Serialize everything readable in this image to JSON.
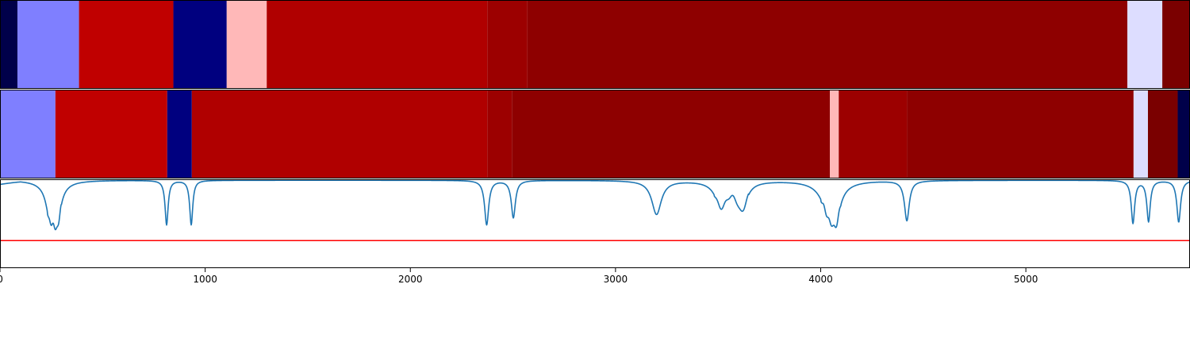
{
  "chart_data": {
    "type": "heatmap",
    "title": "",
    "xlabel": "",
    "ylabel": "",
    "xlim": [
      0,
      5800
    ],
    "x_ticks": [
      0,
      1000,
      2000,
      3000,
      4000,
      5000
    ],
    "x_tick_labels": [
      "0",
      "1000",
      "2000",
      "3000",
      "4000",
      "5000"
    ],
    "colormap": "seismic",
    "rows": [
      {
        "segments": [
          {
            "start": 0,
            "end": 85,
            "color": "#00004a"
          },
          {
            "start": 85,
            "end": 385,
            "color": "#7f7fff"
          },
          {
            "start": 385,
            "end": 845,
            "color": "#c00000"
          },
          {
            "start": 845,
            "end": 1105,
            "color": "#00007f"
          },
          {
            "start": 1105,
            "end": 1300,
            "color": "#ffb8b8"
          },
          {
            "start": 1300,
            "end": 2375,
            "color": "#b00000"
          },
          {
            "start": 2375,
            "end": 2570,
            "color": "#9c0000"
          },
          {
            "start": 2570,
            "end": 5495,
            "color": "#8e0000"
          },
          {
            "start": 5495,
            "end": 5665,
            "color": "#ddddff"
          },
          {
            "start": 5665,
            "end": 5800,
            "color": "#7a0000"
          }
        ]
      },
      {
        "segments": [
          {
            "start": 0,
            "end": 270,
            "color": "#7f7fff"
          },
          {
            "start": 270,
            "end": 815,
            "color": "#c00000"
          },
          {
            "start": 815,
            "end": 935,
            "color": "#00007f"
          },
          {
            "start": 935,
            "end": 2375,
            "color": "#b00000"
          },
          {
            "start": 2375,
            "end": 2495,
            "color": "#9c0000"
          },
          {
            "start": 2495,
            "end": 4045,
            "color": "#8e0000"
          },
          {
            "start": 4045,
            "end": 4088,
            "color": "#ffb8b8"
          },
          {
            "start": 4088,
            "end": 4420,
            "color": "#9c0000"
          },
          {
            "start": 4420,
            "end": 5525,
            "color": "#8e0000"
          },
          {
            "start": 5525,
            "end": 5595,
            "color": "#ddddff"
          },
          {
            "start": 5595,
            "end": 5740,
            "color": "#7a0000"
          },
          {
            "start": 5740,
            "end": 5800,
            "color": "#00004a"
          }
        ]
      }
    ],
    "spectrum": {
      "color": "#1f77b4",
      "ylim": [
        0,
        1
      ],
      "baseline": 0.99,
      "threshold": 0.31,
      "threshold_color": "#ff0000",
      "dips": [
        {
          "x": 260,
          "depth": 0.3,
          "width": 35
        },
        {
          "x": 280,
          "depth": 0.28,
          "width": 18
        },
        {
          "x": 240,
          "depth": 0.18,
          "width": 18
        },
        {
          "x": 812,
          "depth": 0.5,
          "width": 9
        },
        {
          "x": 932,
          "depth": 0.5,
          "width": 9
        },
        {
          "x": 2372,
          "depth": 0.5,
          "width": 12
        },
        {
          "x": 2502,
          "depth": 0.42,
          "width": 12
        },
        {
          "x": 3200,
          "depth": 0.38,
          "width": 28
        },
        {
          "x": 3515,
          "depth": 0.28,
          "width": 35
        },
        {
          "x": 3615,
          "depth": 0.32,
          "width": 30
        },
        {
          "x": 4045,
          "depth": 0.38,
          "width": 45
        },
        {
          "x": 4075,
          "depth": 0.25,
          "width": 22
        },
        {
          "x": 4420,
          "depth": 0.45,
          "width": 14
        },
        {
          "x": 5522,
          "depth": 0.48,
          "width": 10
        },
        {
          "x": 5598,
          "depth": 0.46,
          "width": 10
        },
        {
          "x": 5745,
          "depth": 0.47,
          "width": 11
        }
      ]
    }
  }
}
